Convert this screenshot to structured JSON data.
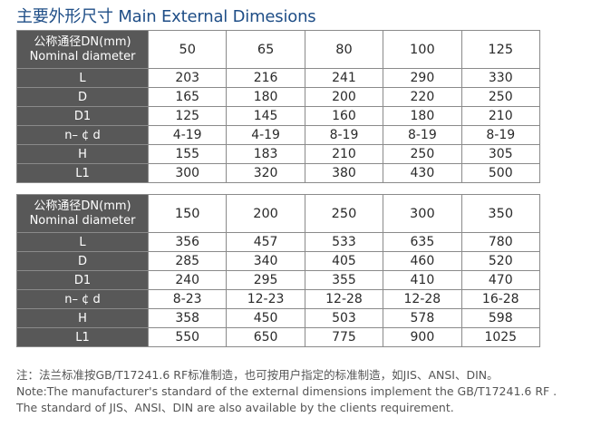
{
  "title": "主要外形尺寸 Main External Dimesions",
  "header_label": {
    "line1": "公称通径DN(mm)",
    "line2": "Nominal diameter"
  },
  "row_labels": [
    "L",
    "D",
    "D1",
    "n– ¢ d",
    "H",
    "L1"
  ],
  "tables": [
    {
      "diameters": [
        "50",
        "65",
        "80",
        "100",
        "125"
      ],
      "rows": [
        [
          "203",
          "216",
          "241",
          "290",
          "330"
        ],
        [
          "165",
          "180",
          "200",
          "220",
          "250"
        ],
        [
          "125",
          "145",
          "160",
          "180",
          "210"
        ],
        [
          "4-19",
          "4-19",
          "8-19",
          "8-19",
          "8-19"
        ],
        [
          "155",
          "183",
          "210",
          "250",
          "305"
        ],
        [
          "300",
          "320",
          "380",
          "430",
          "500"
        ]
      ]
    },
    {
      "diameters": [
        "150",
        "200",
        "250",
        "300",
        "350"
      ],
      "rows": [
        [
          "356",
          "457",
          "533",
          "635",
          "780"
        ],
        [
          "285",
          "340",
          "405",
          "460",
          "520"
        ],
        [
          "240",
          "295",
          "355",
          "410",
          "470"
        ],
        [
          "8-23",
          "12-23",
          "12-28",
          "12-28",
          "16-28"
        ],
        [
          "358",
          "450",
          "503",
          "578",
          "598"
        ],
        [
          "550",
          "650",
          "775",
          "900",
          "1025"
        ]
      ]
    }
  ],
  "notes": {
    "cn": "注：法兰标准按GB/T17241.6  RF标准制造，也可按用户指定的标准制造，如JIS、ANSI、DIN。",
    "en1": "Note:The manufacturer's standard of the external dimensions implement the GB/T17241.6  RF .",
    "en2": "The standard of JIS、ANSI、DIN are also available by the clients requirement."
  },
  "colors": {
    "title": "#1f4e87",
    "header_bg": "#585858",
    "header_text": "#ffffff",
    "border": "#8a8a8a",
    "cell_text": "#2a2a2a",
    "note_text": "#555555"
  }
}
